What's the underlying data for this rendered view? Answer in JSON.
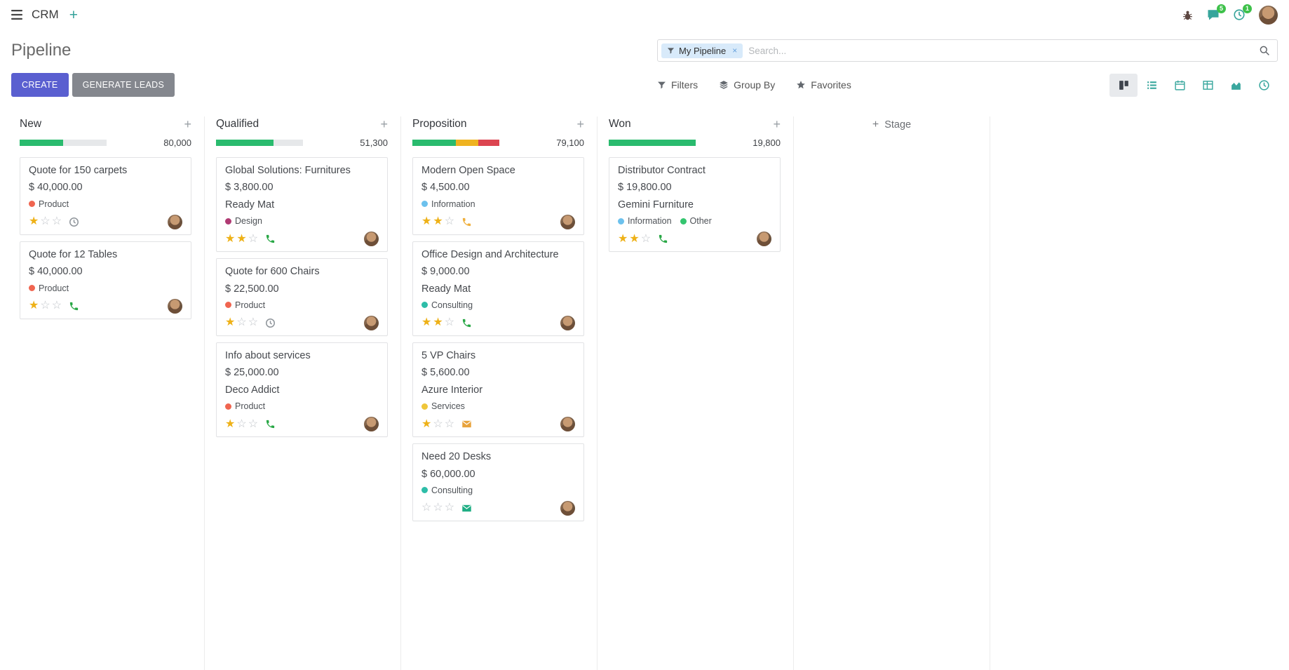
{
  "colors": {
    "accent_create": "#5a5fd0",
    "teal_icon": "#37a59b",
    "badge_green": "#3ec14a",
    "progress_success": "#2abb6e",
    "progress_warning": "#efb320",
    "progress_danger": "#dc4550",
    "progress_muted": "#e6e8ea",
    "star_gold": "#eeb117"
  },
  "navbar": {
    "app_name": "CRM",
    "plus_glyph": "+",
    "messages_badge": "5",
    "activities_badge": "1",
    "icons": [
      "apps-menu-icon",
      "plus-icon",
      "bug-icon",
      "messages-icon",
      "activities-clock-icon",
      "user-avatar"
    ]
  },
  "control_panel": {
    "title": "Pipeline",
    "create_label": "CREATE",
    "generate_leads_label": "GENERATE LEADS",
    "filters_label": "Filters",
    "group_by_label": "Group By",
    "favorites_label": "Favorites",
    "search": {
      "facet_label": "My Pipeline",
      "facet_remove": "×",
      "placeholder": "Search..."
    },
    "view_switcher": [
      "kanban",
      "list",
      "calendar",
      "pivot",
      "graph",
      "activity"
    ],
    "active_view": "kanban"
  },
  "kanban": {
    "add_stage_label": "Stage",
    "add_column_plus": "+",
    "add_card_plus": "+",
    "columns": [
      {
        "name": "New",
        "total": "80,000",
        "progress": [
          {
            "type": "success",
            "pct": 50
          },
          {
            "type": "muted",
            "pct": 50
          }
        ],
        "cards": [
          {
            "title": "Quote for 150 carpets",
            "amount": "$ 40,000.00",
            "partner": null,
            "tags": [
              {
                "label": "Product",
                "color": "#f06550"
              }
            ],
            "stars": 1,
            "activity": {
              "icon": "clock-icon",
              "color": "#8f959b"
            }
          },
          {
            "title": "Quote for 12 Tables",
            "amount": "$ 40,000.00",
            "partner": null,
            "tags": [
              {
                "label": "Product",
                "color": "#f06550"
              }
            ],
            "stars": 1,
            "activity": {
              "icon": "phone-icon",
              "color": "#28a745"
            }
          }
        ]
      },
      {
        "name": "Qualified",
        "total": "51,300",
        "progress": [
          {
            "type": "success",
            "pct": 66
          },
          {
            "type": "muted",
            "pct": 34
          }
        ],
        "cards": [
          {
            "title": "Global Solutions: Furnitures",
            "amount": "$ 3,800.00",
            "partner": "Ready Mat",
            "tags": [
              {
                "label": "Design",
                "color": "#b03a73"
              }
            ],
            "stars": 2,
            "activity": {
              "icon": "phone-icon",
              "color": "#28a745"
            }
          },
          {
            "title": "Quote for 600 Chairs",
            "amount": "$ 22,500.00",
            "partner": null,
            "tags": [
              {
                "label": "Product",
                "color": "#f06550"
              }
            ],
            "stars": 1,
            "activity": {
              "icon": "clock-icon",
              "color": "#8f959b"
            }
          },
          {
            "title": "Info about services",
            "amount": "$ 25,000.00",
            "partner": "Deco Addict",
            "tags": [
              {
                "label": "Product",
                "color": "#f06550"
              }
            ],
            "stars": 1,
            "activity": {
              "icon": "phone-icon",
              "color": "#28a745"
            }
          }
        ]
      },
      {
        "name": "Proposition",
        "total": "79,100",
        "progress": [
          {
            "type": "success",
            "pct": 50
          },
          {
            "type": "warning",
            "pct": 26
          },
          {
            "type": "danger",
            "pct": 24
          }
        ],
        "cards": [
          {
            "title": "Modern Open Space",
            "amount": "$ 4,500.00",
            "partner": null,
            "tags": [
              {
                "label": "Information",
                "color": "#6cc1ed"
              }
            ],
            "stars": 2,
            "activity": {
              "icon": "phone-icon",
              "color": "#efaf3c"
            }
          },
          {
            "title": "Office Design and Architecture",
            "amount": "$ 9,000.00",
            "partner": "Ready Mat",
            "tags": [
              {
                "label": "Consulting",
                "color": "#2dbda8"
              }
            ],
            "stars": 2,
            "activity": {
              "icon": "phone-icon",
              "color": "#28a745"
            }
          },
          {
            "title": "5 VP Chairs",
            "amount": "$ 5,600.00",
            "partner": "Azure Interior",
            "tags": [
              {
                "label": "Services",
                "color": "#efc63a"
              }
            ],
            "stars": 1,
            "activity": {
              "icon": "envelope-icon",
              "color": "#e8a33c"
            }
          },
          {
            "title": "Need 20 Desks",
            "amount": "$ 60,000.00",
            "partner": null,
            "tags": [
              {
                "label": "Consulting",
                "color": "#2dbda8"
              }
            ],
            "stars": 0,
            "activity": {
              "icon": "envelope-icon",
              "color": "#1fae84"
            }
          }
        ]
      },
      {
        "name": "Won",
        "total": "19,800",
        "progress": [
          {
            "type": "success",
            "pct": 100
          }
        ],
        "cards": [
          {
            "title": "Distributor Contract",
            "amount": "$ 19,800.00",
            "partner": "Gemini Furniture",
            "tags": [
              {
                "label": "Information",
                "color": "#6cc1ed"
              },
              {
                "label": "Other",
                "color": "#34c56f"
              }
            ],
            "stars": 2,
            "activity": {
              "icon": "phone-icon",
              "color": "#28a745"
            }
          }
        ]
      }
    ]
  }
}
